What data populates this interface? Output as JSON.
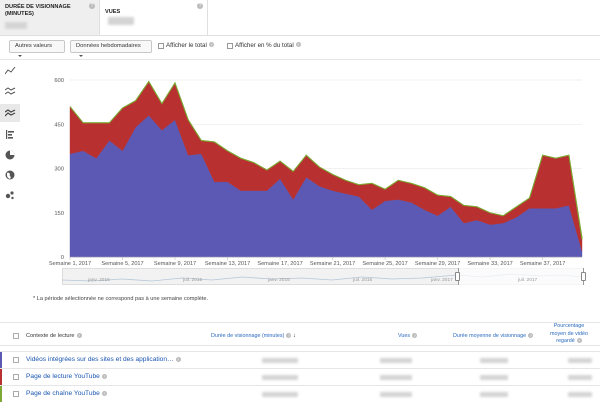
{
  "metrics": {
    "tab1": {
      "label": "DURÉE DE VISIONNAGE (MINUTES)"
    },
    "tab2": {
      "label": "VUES"
    },
    "help_glyph": "?"
  },
  "controls": {
    "more_values": "Autres valeurs",
    "weekly_data": "Données hebdomadaires",
    "show_total": "Afficher le total",
    "show_percent_total": "Afficher en % du total"
  },
  "chart_types": [
    "line-chart-icon",
    "multi-line-chart-icon",
    "stacked-area-chart-icon",
    "bar-chart-icon",
    "pie-chart-icon",
    "map-icon",
    "bubble-chart-icon"
  ],
  "chart_data": {
    "type": "area",
    "stacked": true,
    "x_labels": [
      "Semaine 1, 2017",
      "Semaine 5, 2017",
      "Semaine 9, 2017",
      "Semaine 13, 2017",
      "Semaine 17, 2017",
      "Semaine 21, 2017",
      "Semaine 25, 2017",
      "Semaine 29, 2017",
      "Semaine 33, 2017",
      "Semaine 37, 2017"
    ],
    "ylim": [
      0,
      600
    ],
    "y_ticks": [
      0,
      150,
      300,
      450,
      600
    ],
    "grid": true,
    "series": [
      {
        "color": "#5b59b3",
        "values": [
          350,
          360,
          335,
          395,
          360,
          440,
          480,
          430,
          465,
          345,
          350,
          255,
          255,
          225,
          225,
          225,
          265,
          195,
          270,
          240,
          225,
          215,
          205,
          160,
          190,
          195,
          185,
          160,
          140,
          170,
          115,
          125,
          110,
          115,
          135,
          165,
          165,
          165,
          175,
          20
        ]
      },
      {
        "color": "#b8302f",
        "values": [
          160,
          95,
          120,
          60,
          145,
          90,
          115,
          90,
          125,
          120,
          45,
          135,
          105,
          110,
          95,
          70,
          60,
          95,
          75,
          65,
          55,
          45,
          40,
          90,
          40,
          65,
          65,
          75,
          70,
          35,
          60,
          45,
          40,
          25,
          35,
          35,
          180,
          170,
          170,
          40
        ]
      },
      {
        "color": "#7da833",
        "values": [
          0,
          0,
          0,
          0,
          0,
          0,
          0,
          0,
          0,
          0,
          0,
          0,
          0,
          0,
          0,
          0,
          0,
          0,
          0,
          0,
          0,
          0,
          0,
          0,
          0,
          0,
          0,
          0,
          0,
          0,
          0,
          0,
          0,
          0,
          0,
          0,
          0,
          0,
          0,
          5
        ]
      }
    ]
  },
  "timeline": {
    "labels": [
      "janv. 2016",
      "juil. 2016",
      "janv. 2017",
      "juil. 2017"
    ]
  },
  "footnote": "* La période sélectionnée ne correspond pas à une semaine complète.",
  "table": {
    "headers": {
      "context": "Contexte de lecture",
      "watch_time": "Durée de visionnage (minutes)",
      "sort_glyph": "↓",
      "views": "Vues",
      "avg_duration": "Durée moyenne de visionnage",
      "pct_line1": "Pourcentage",
      "pct_line2": "moyen de vidéo",
      "pct_line3": "regardé"
    },
    "rows": [
      {
        "label": "Vidéos intégrées sur des sites et des application…",
        "color": "#5b59b3"
      },
      {
        "label": "Page de lecture YouTube",
        "color": "#b8302f"
      },
      {
        "label": "Page de chaîne YouTube",
        "color": "#7da833"
      }
    ]
  }
}
